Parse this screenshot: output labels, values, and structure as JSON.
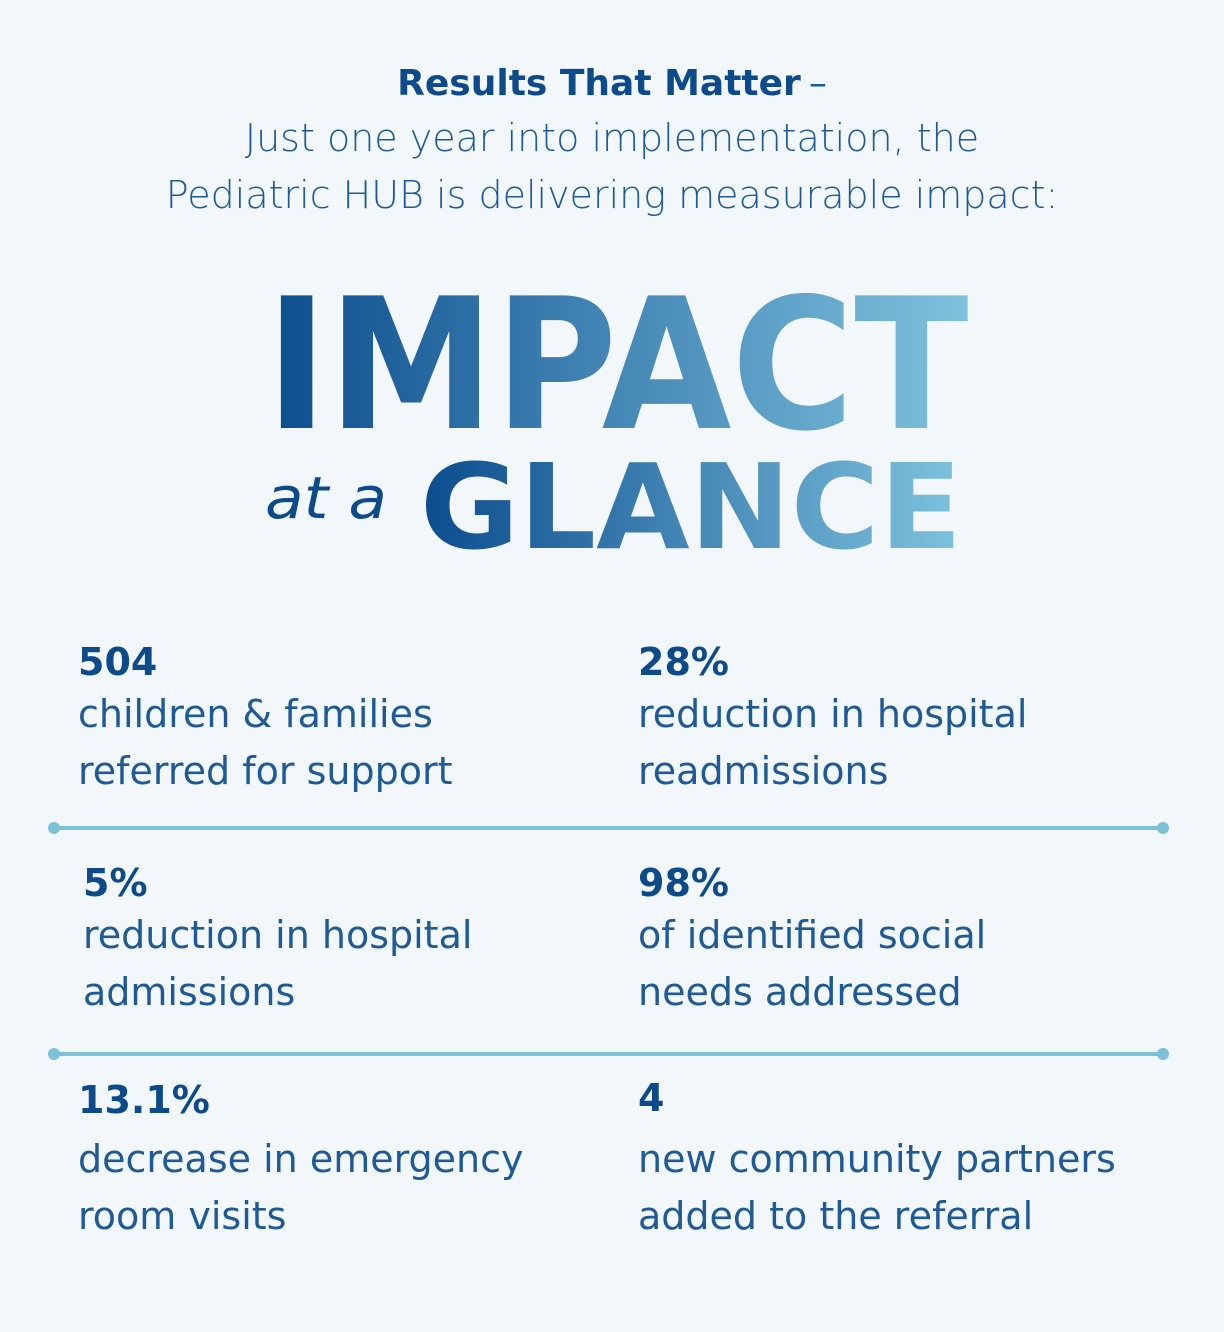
{
  "intro": {
    "title": "Results That Matter",
    "dash": "–",
    "line1": "Just one year into implementation, the",
    "line2": "Pediatric HUB is delivering measurable impact:"
  },
  "headline": {
    "word1": "IMPACT",
    "connector": "at a",
    "word2": "GLANCE",
    "gradient_start": "#0b4c8e",
    "gradient_end": "#7fc2dd"
  },
  "stats": [
    {
      "value": "504",
      "line1": "children & families",
      "line2": "referred for support"
    },
    {
      "value": "28%",
      "line1": "reduction in hospital",
      "line2": "readmissions"
    },
    {
      "value": "5%",
      "line1": "reduction in hospital",
      "line2": "admissions"
    },
    {
      "value": "98%",
      "line1": "of identified social",
      "line2": "needs addressed"
    },
    {
      "value": "13.1%",
      "line1": "decrease in emergency",
      "line2": "room visits"
    },
    {
      "value": "4",
      "line1": "new community partners",
      "line2": "added to the referral"
    }
  ],
  "colors": {
    "background": "#f1f7fa",
    "primary": "#0d4a8a",
    "divider": "#7bc1d8"
  }
}
